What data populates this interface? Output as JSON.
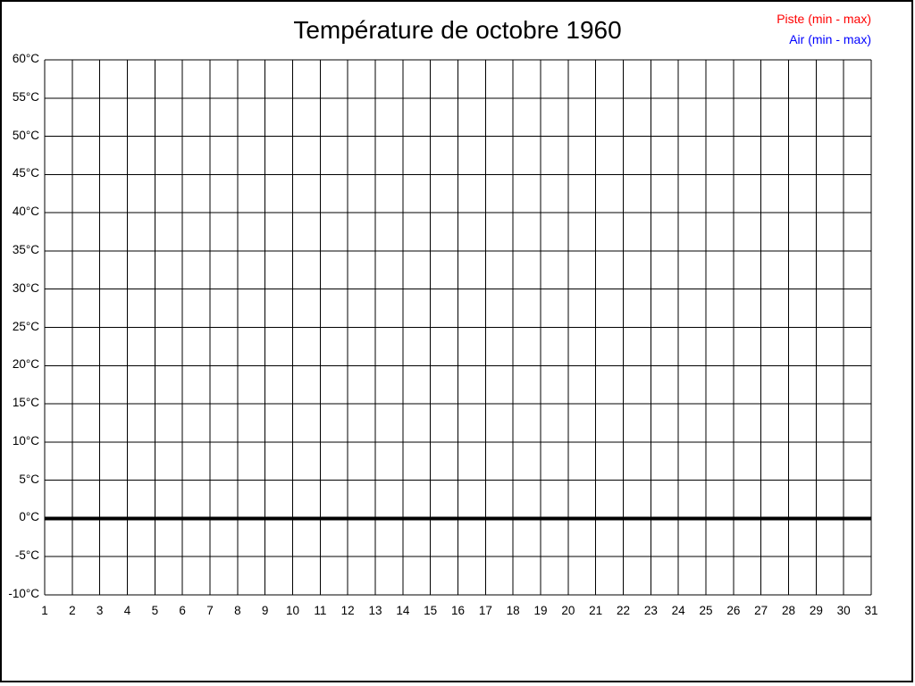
{
  "window": {
    "background": "#ffffff",
    "border_color": "#000000"
  },
  "chart": {
    "title": "Température de octobre 1960",
    "legend": [
      {
        "label": "Piste (min - max)",
        "color": "#ff0000"
      },
      {
        "label": "Air (min - max)",
        "color": "#0000ff"
      }
    ]
  },
  "chart_data": {
    "type": "line",
    "title": "Température de octobre 1960",
    "x_tick_labels": [
      "1",
      "2",
      "3",
      "4",
      "5",
      "6",
      "7",
      "8",
      "9",
      "10",
      "11",
      "12",
      "13",
      "14",
      "15",
      "16",
      "17",
      "18",
      "19",
      "20",
      "21",
      "22",
      "23",
      "24",
      "25",
      "26",
      "27",
      "28",
      "29",
      "30",
      "31"
    ],
    "x_ticks": [
      1,
      2,
      3,
      4,
      5,
      6,
      7,
      8,
      9,
      10,
      11,
      12,
      13,
      14,
      15,
      16,
      17,
      18,
      19,
      20,
      21,
      22,
      23,
      24,
      25,
      26,
      27,
      28,
      29,
      30,
      31
    ],
    "y_tick_labels": [
      "60°C",
      "55°C",
      "50°C",
      "45°C",
      "40°C",
      "35°C",
      "30°C",
      "25°C",
      "20°C",
      "15°C",
      "10°C",
      "5°C",
      "0°C",
      "-5°C",
      "-10°C"
    ],
    "y_ticks": [
      60,
      55,
      50,
      45,
      40,
      35,
      30,
      25,
      20,
      15,
      10,
      5,
      0,
      -5,
      -10
    ],
    "xlim": [
      1,
      31
    ],
    "ylim": [
      -10,
      60
    ],
    "grid": true,
    "grid_color": "#000000",
    "zero_line": {
      "value": 0,
      "color": "#000000",
      "thickness": 4
    },
    "legend_position": "top-right",
    "series": [
      {
        "name": "Piste (min - max)",
        "color": "#ff0000",
        "values": []
      },
      {
        "name": "Air (min - max)",
        "color": "#0000ff",
        "values": []
      }
    ]
  }
}
